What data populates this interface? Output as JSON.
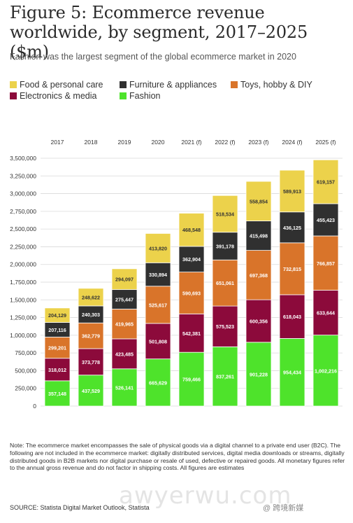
{
  "header": {
    "title": "Figure 5: Ecommerce revenue worldwide, by segment, 2017–2025 ($m)",
    "subtitle": "Fashion was the largest segment of the global ecommerce market in 2020"
  },
  "footer": {
    "note": "Note: The ecommerce market encompasses the sale of physical goods via a digital channel to a private end user (B2C). The following are not included in the ecommerce market: digitally distributed services, digital media downloads or streams, digitally distributed goods in B2B markets nor digital purchase or resale of used, defective or repaired goods. All monetary figures refer to the annual gross revenue and do not factor in shipping costs. All figures are estimates",
    "source": "SOURCE: Statista Digital Market Outlook, Statista",
    "watermark": "awyerwu.com",
    "watermark_tag": "@ 跨境新媒"
  },
  "chart_data": {
    "type": "bar",
    "stacked": true,
    "categories": [
      "2017",
      "2018",
      "2019",
      "2020",
      "2021 (f)",
      "2022 (f)",
      "2023 (f)",
      "2024 (f)",
      "2025 (f)"
    ],
    "ylim": [
      0,
      3500000
    ],
    "yticks": [
      0,
      250000,
      500000,
      750000,
      1000000,
      1250000,
      1500000,
      1750000,
      2000000,
      2250000,
      2500000,
      2750000,
      3000000,
      3250000,
      3500000
    ],
    "ytick_labels": [
      "0",
      "250,000",
      "500,000",
      "750,000",
      "1,000,000",
      "1,250,000",
      "1,500,000",
      "1,750,000",
      "2,000,000",
      "2,250,000",
      "2,500,000",
      "2,750,000",
      "3,000,000",
      "3,250,000",
      "3,500,000"
    ],
    "grid": true,
    "legend_position": "top",
    "legend_order": [
      "Food & personal care",
      "Furniture & appliances",
      "Toys, hobby & DIY",
      "Electronics & media",
      "Fashion"
    ],
    "series": [
      {
        "name": "Fashion",
        "color": "#4ee32b",
        "label_color": "#ffffff",
        "values": [
          357148,
          437529,
          526141,
          665629,
          759466,
          837261,
          901228,
          954434,
          1002216
        ],
        "labels": [
          "357,148",
          "437,529",
          "526,141",
          "665,629",
          "759,466",
          "837,261",
          "901,228",
          "954,434",
          "1,002,216"
        ]
      },
      {
        "name": "Electronics & media",
        "color": "#8c0a3b",
        "label_color": "#ffffff",
        "values": [
          318012,
          373778,
          423485,
          501808,
          542381,
          575523,
          600356,
          618043,
          633644
        ],
        "labels": [
          "318,012",
          "373,778",
          "423,485",
          "501,808",
          "542,381",
          "575,523",
          "600,356",
          "618,043",
          "633,644"
        ]
      },
      {
        "name": "Toys, hobby & DIY",
        "color": "#d9742a",
        "label_color": "#ffffff",
        "values": [
          299201,
          362779,
          419965,
          525617,
          590693,
          651061,
          697368,
          732815,
          766857
        ],
        "labels": [
          "299,201",
          "362,779",
          "419,965",
          "525,617",
          "590,693",
          "651,061",
          "697,368",
          "732,815",
          "766,857"
        ]
      },
      {
        "name": "Furniture & appliances",
        "color": "#303030",
        "label_color": "#ffffff",
        "values": [
          207116,
          240303,
          275447,
          330894,
          362904,
          391178,
          415498,
          436125,
          455423
        ],
        "labels": [
          "207,116",
          "240,303",
          "275,447",
          "330,894",
          "362,904",
          "391,178",
          "415,498",
          "436,125",
          "455,423"
        ]
      },
      {
        "name": "Food & personal care",
        "color": "#ecd24b",
        "label_color": "#333333",
        "values": [
          204129,
          248622,
          294097,
          413820,
          468548,
          518534,
          558854,
          589913,
          619157
        ],
        "labels": [
          "204,129",
          "248,622",
          "294,097",
          "413,820",
          "468,548",
          "518,534",
          "558,854",
          "589,913",
          "619,157"
        ]
      }
    ]
  }
}
